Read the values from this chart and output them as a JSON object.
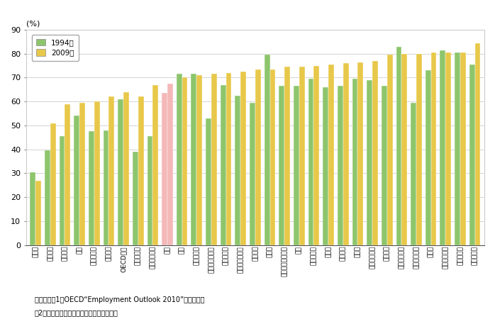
{
  "categories": [
    "トルコ",
    "メキシコ",
    "イタリア",
    "韓国",
    "ギリシャン",
    "スペイン",
    "OECD平均",
    "ハンガリー",
    "アイルランド",
    "日本",
    "米国",
    "スロバキア",
    "ルクセンブルク",
    "ポーランド",
    "オーストラリア",
    "ベルギー",
    "チェコ",
    "ニュージーランド",
    "英国",
    "ポルトガル",
    "ドイツ",
    "フランス",
    "カナダ",
    "オーストリア",
    "オランダ",
    "フィンランド",
    "アイスランド",
    "スイス",
    "スウェーデン",
    "デンマーク",
    "ノルウェー"
  ],
  "values_1994": [
    30.5,
    39.5,
    45.5,
    54.0,
    47.5,
    48.0,
    61.0,
    39.0,
    45.5,
    63.5,
    71.5,
    71.5,
    53.0,
    67.0,
    62.5,
    59.5,
    79.5,
    66.5,
    66.5,
    69.5,
    66.0,
    66.5,
    69.5,
    69.0,
    66.5,
    83.0,
    59.5,
    73.0,
    81.5,
    80.5,
    75.5
  ],
  "values_2009": [
    27.0,
    51.0,
    59.0,
    59.5,
    60.0,
    62.0,
    64.0,
    62.0,
    67.0,
    67.5,
    70.0,
    71.0,
    71.5,
    72.0,
    72.5,
    73.5,
    73.5,
    74.5,
    74.5,
    75.0,
    75.5,
    76.0,
    76.5,
    77.0,
    79.5,
    80.0,
    80.0,
    80.5,
    80.5,
    80.5,
    84.5
  ],
  "japan_index": 9,
  "color_1994": "#8dc56c",
  "color_2009": "#e8c84a",
  "japan_color": "#f4b8b8",
  "ylabel": "(%)",
  "ylim": [
    0,
    90
  ],
  "yticks": [
    0,
    10,
    20,
    30,
    40,
    50,
    60,
    70,
    80,
    90
  ],
  "legend_1994": "1994年",
  "legend_2009": "2009年",
  "note_line1": "（備考）　1。OECD“Employment Outlook 2010”より作成。",
  "note_line2": "　2。就業率は「就業者数／人口」で計算。"
}
